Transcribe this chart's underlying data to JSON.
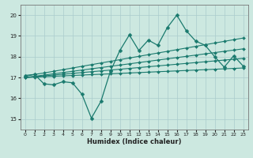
{
  "title": "",
  "xlabel": "Humidex (Indice chaleur)",
  "ylabel": "",
  "background_color": "#cce8e0",
  "grid_color": "#aacccc",
  "line_color": "#1a7a6e",
  "x_values": [
    0,
    1,
    2,
    3,
    4,
    5,
    6,
    7,
    8,
    9,
    10,
    11,
    12,
    13,
    14,
    15,
    16,
    17,
    18,
    19,
    20,
    21,
    22,
    23
  ],
  "line_jagged": [
    17.1,
    17.15,
    16.7,
    16.65,
    16.8,
    16.75,
    16.2,
    15.05,
    15.85,
    17.3,
    18.3,
    19.05,
    18.3,
    18.8,
    18.55,
    19.4,
    20.0,
    19.25,
    18.75,
    18.55,
    18.0,
    17.5,
    18.05,
    17.55
  ],
  "line_upper": [
    17.05,
    17.15,
    17.22,
    17.3,
    17.38,
    17.46,
    17.54,
    17.62,
    17.7,
    17.78,
    17.86,
    17.94,
    18.02,
    18.1,
    18.18,
    18.26,
    18.34,
    18.42,
    18.5,
    18.58,
    18.66,
    18.74,
    18.82,
    18.9
  ],
  "line_mid1": [
    17.0,
    17.06,
    17.12,
    17.18,
    17.24,
    17.3,
    17.36,
    17.42,
    17.48,
    17.54,
    17.6,
    17.66,
    17.72,
    17.78,
    17.84,
    17.9,
    17.96,
    18.02,
    18.08,
    18.14,
    18.2,
    18.26,
    18.32,
    18.38
  ],
  "line_mid2": [
    17.0,
    17.04,
    17.08,
    17.12,
    17.16,
    17.2,
    17.24,
    17.28,
    17.32,
    17.36,
    17.4,
    17.44,
    17.48,
    17.52,
    17.56,
    17.6,
    17.64,
    17.68,
    17.72,
    17.76,
    17.8,
    17.84,
    17.88,
    17.92
  ],
  "line_lower": [
    17.0,
    17.02,
    17.04,
    17.06,
    17.08,
    17.1,
    17.12,
    17.14,
    17.16,
    17.18,
    17.2,
    17.22,
    17.24,
    17.26,
    17.28,
    17.3,
    17.32,
    17.34,
    17.36,
    17.38,
    17.4,
    17.42,
    17.44,
    17.46
  ],
  "ylim": [
    14.5,
    20.5
  ],
  "yticks": [
    15,
    16,
    17,
    18,
    19,
    20
  ],
  "xticks": [
    0,
    1,
    2,
    3,
    4,
    5,
    6,
    7,
    8,
    9,
    10,
    11,
    12,
    13,
    14,
    15,
    16,
    17,
    18,
    19,
    20,
    21,
    22,
    23
  ]
}
